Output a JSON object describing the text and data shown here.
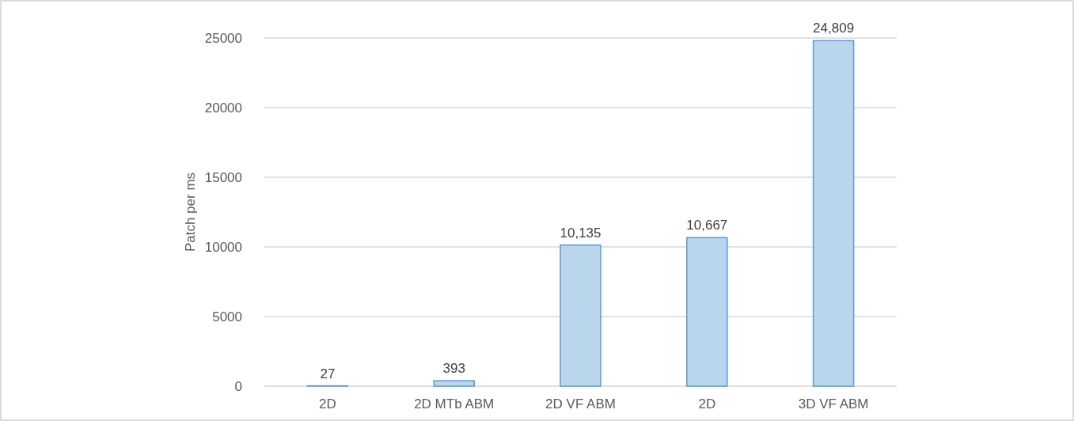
{
  "chart_data": {
    "type": "bar",
    "ylabel": "Patch per ms",
    "categories": [
      "2D",
      "2D MTb ABM",
      "2D VF ABM",
      "2D",
      "3D VF ABM"
    ],
    "values": [
      27,
      393,
      10135,
      10667,
      24809
    ],
    "value_labels": [
      "27",
      "393",
      "10,135",
      "10,667",
      "24,809"
    ],
    "color": "#bad6ec",
    "ylim": [
      0,
      25000
    ],
    "yticks": [
      0,
      5000,
      10000,
      15000,
      20000,
      25000
    ],
    "grid": "y"
  }
}
